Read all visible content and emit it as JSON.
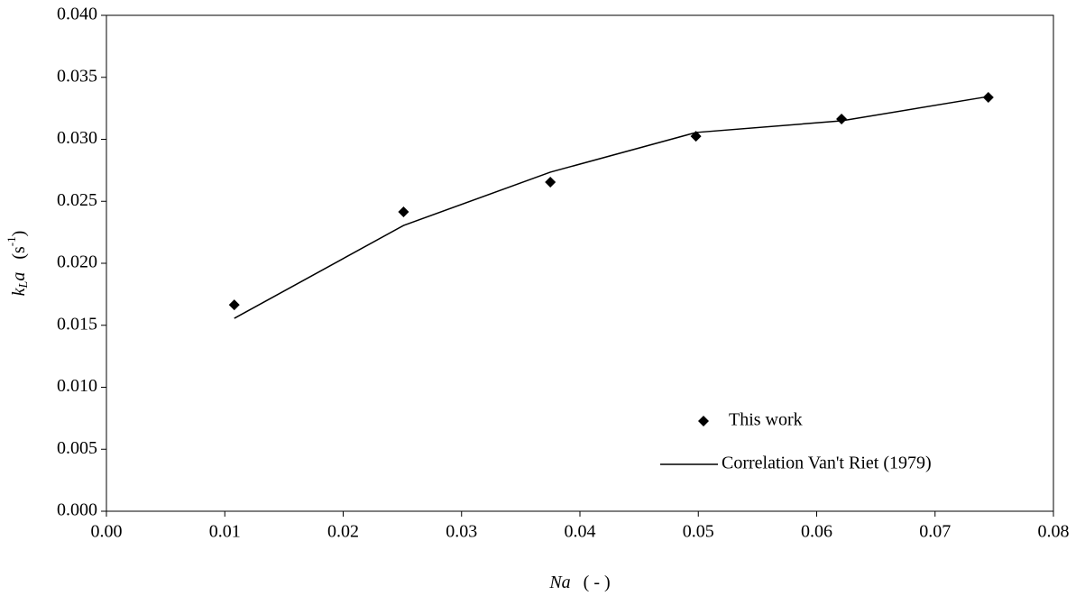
{
  "chart_data": {
    "type": "scatter",
    "xlabel_parts": [
      "Na",
      "( - )"
    ],
    "ylabel_parts": [
      "k",
      "L",
      "a",
      "(s",
      "-1",
      ")"
    ],
    "xlim": [
      0,
      0.08
    ],
    "xticks": [
      {
        "value": 0,
        "label": "0.00"
      },
      {
        "value": 0.01,
        "label": "0.01"
      },
      {
        "value": 0.02,
        "label": "0.02"
      },
      {
        "value": 0.03,
        "label": "0.03"
      },
      {
        "value": 0.04,
        "label": "0.04"
      },
      {
        "value": 0.05,
        "label": "0.05"
      },
      {
        "value": 0.06,
        "label": "0.06"
      },
      {
        "value": 0.07,
        "label": "0.07"
      },
      {
        "value": 0.08,
        "label": "0.08"
      }
    ],
    "ylim": [
      0,
      0.04
    ],
    "yticks": [
      {
        "value": 0,
        "label": "0.000"
      },
      {
        "value": 0.005,
        "label": "0.005"
      },
      {
        "value": 0.01,
        "label": "0.010"
      },
      {
        "value": 0.015,
        "label": "0.015"
      },
      {
        "value": 0.02,
        "label": "0.020"
      },
      {
        "value": 0.025,
        "label": "0.025"
      },
      {
        "value": 0.03,
        "label": "0.030"
      },
      {
        "value": 0.035,
        "label": "0.035"
      },
      {
        "value": 0.04,
        "label": "0.040"
      }
    ],
    "legend": "lower-right",
    "series": [
      {
        "name": "This work",
        "type": "scatter",
        "color": "#000000",
        "x": [
          0.0108,
          0.0251,
          0.0375,
          0.0498,
          0.0621,
          0.0745
        ],
        "values": [
          0.01665,
          0.02415,
          0.02655,
          0.03025,
          0.03164,
          0.03338
        ]
      },
      {
        "name": "Correlation Van't Riet (1979)",
        "type": "line",
        "color": "#000000",
        "x": [
          0.0108,
          0.0251,
          0.0375,
          0.0498,
          0.0621,
          0.0745
        ],
        "values": [
          0.01556,
          0.02305,
          0.02735,
          0.03055,
          0.03149,
          0.03345
        ]
      }
    ]
  }
}
